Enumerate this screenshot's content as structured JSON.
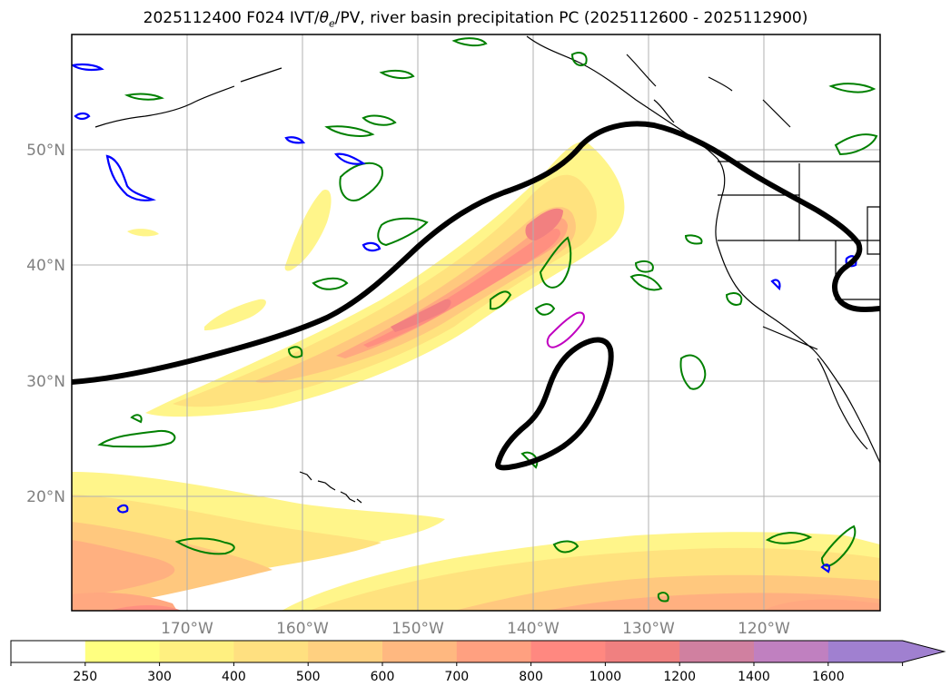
{
  "title": {
    "prefix": "2025112400 F024 IVT/",
    "theta": "θ",
    "theta_sub": "e",
    "suffix": "/PV, river basin precipitation PC (2025112600 - 2025112900)"
  },
  "map": {
    "lat_labels": [
      "50°N",
      "40°N",
      "30°N",
      "20°N"
    ],
    "lat_values": [
      50,
      40,
      30,
      20
    ],
    "lon_labels": [
      "170°W",
      "160°W",
      "150°W",
      "140°W",
      "130°W",
      "120°W"
    ],
    "lon_values": [
      -170,
      -160,
      -150,
      -140,
      -130,
      -120
    ],
    "extent": {
      "lon_min": -180,
      "lon_max": -110,
      "lat_min": 10,
      "lat_max": 60
    },
    "colors": {
      "coast": "#000000",
      "theta_contour": "#000000",
      "pv_green": "#008000",
      "pv_blue": "#0000ff",
      "pv_magenta": "#c000c0",
      "grid": "#b0b0b0"
    }
  },
  "colorbar": {
    "levels": [
      "250",
      "300",
      "400",
      "500",
      "600",
      "700",
      "800",
      "1000",
      "1200",
      "1400",
      "1600"
    ],
    "colors": [
      "#ffffff",
      "#ffff80",
      "#fff080",
      "#ffe080",
      "#ffd080",
      "#ffb880",
      "#ffa080",
      "#ff8880",
      "#f08080",
      "#d080a0",
      "#c080c0",
      "#a080d0"
    ]
  }
}
